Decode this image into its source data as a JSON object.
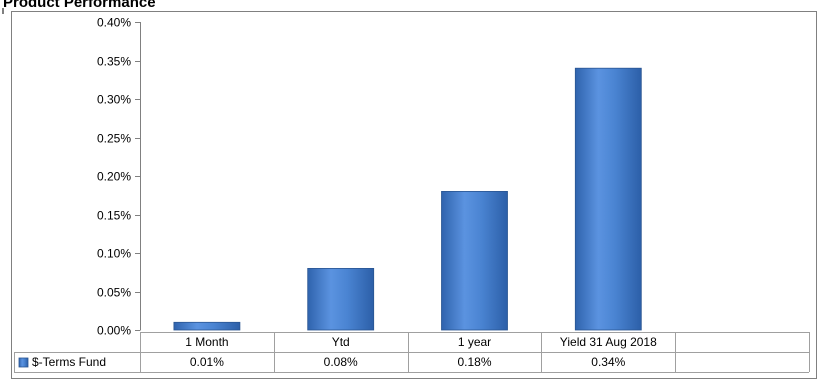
{
  "chart_data": {
    "type": "bar",
    "title": "Product Performance",
    "categories": [
      "1 Month",
      "Ytd",
      "1 year",
      "Yield 31 Aug 2018"
    ],
    "series": [
      {
        "name": "$-Terms Fund",
        "values": [
          0.01,
          0.08,
          0.18,
          0.34
        ],
        "color": "#4a84d2"
      }
    ],
    "data_labels": [
      "0.01%",
      "0.08%",
      "0.18%",
      "0.34%"
    ],
    "y_ticks": [
      "0.00%",
      "0.05%",
      "0.10%",
      "0.15%",
      "0.20%",
      "0.25%",
      "0.30%",
      "0.35%",
      "0.40%"
    ],
    "ylim": [
      0,
      0.4
    ],
    "ylabel": "",
    "xlabel": "",
    "grid": false,
    "legend": "data-table"
  }
}
